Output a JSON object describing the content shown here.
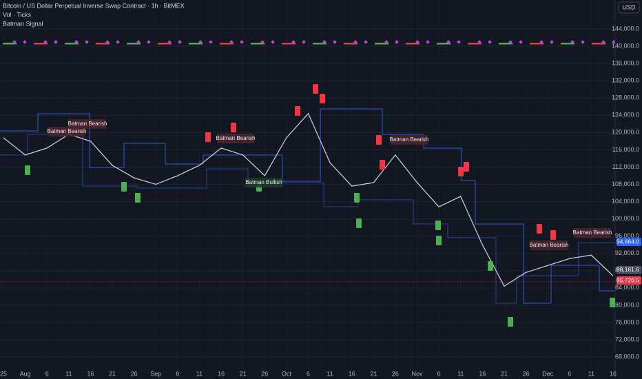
{
  "chart_data": {
    "type": "line",
    "title": "Bitcoin / US Dollar Perpetual Inverse Swap Contract · 1h · BitMEX",
    "indicators": [
      "Vol · Ticks",
      "Batman Signal"
    ],
    "currency": "USD",
    "categories": [
      "25",
      "Aug",
      "6",
      "11",
      "16",
      "21",
      "26",
      "Sep",
      "6",
      "11",
      "16",
      "21",
      "26",
      "Oct",
      "6",
      "11",
      "16",
      "21",
      "26",
      "Nov",
      "6",
      "11",
      "16",
      "21",
      "26",
      "Dec",
      "6",
      "11",
      "16"
    ],
    "series": [
      {
        "name": "BTC",
        "color": "#c7cad3",
        "values": [
          118800,
          114800,
          116400,
          119600,
          118000,
          112400,
          109500,
          108000,
          110000,
          112400,
          116400,
          114800,
          110000,
          118800,
          124400,
          113000,
          107600,
          108400,
          114800,
          108400,
          102800,
          105200,
          94000,
          84400,
          87600,
          89200,
          90800,
          91600,
          86800
        ]
      }
    ],
    "ylim": [
      65300,
      150700
    ],
    "yticks": [
      {
        "value": 68000,
        "label": "68,000.0"
      },
      {
        "value": 72000,
        "label": "72,000.0"
      },
      {
        "value": 76000,
        "label": "76,000.0"
      },
      {
        "value": 80000,
        "label": "80,000.0"
      },
      {
        "value": 84000,
        "label": "84,000.0"
      },
      {
        "value": 88000,
        "label": "88,000.0"
      },
      {
        "value": 92000,
        "label": "92,000.0"
      },
      {
        "value": 96000,
        "label": "96,000.0"
      },
      {
        "value": 100000,
        "label": "100,000.0"
      },
      {
        "value": 104000,
        "label": "104,000.0"
      },
      {
        "value": 108000,
        "label": "108,000.0"
      },
      {
        "value": 112000,
        "label": "112,000.0"
      },
      {
        "value": 116000,
        "label": "116,000.0"
      },
      {
        "value": 120000,
        "label": "120,000.0"
      },
      {
        "value": 124000,
        "label": "124,000.0"
      },
      {
        "value": 128000,
        "label": "128,000.0"
      },
      {
        "value": 132000,
        "label": "132,000.0"
      },
      {
        "value": 136000,
        "label": "136,000.0"
      },
      {
        "value": 140000,
        "label": "140,000.0"
      },
      {
        "value": 144000,
        "label": "144,000.0"
      }
    ],
    "grid": true,
    "price_tags": [
      {
        "value": 94664,
        "label": "94,664.0",
        "color": "#2962ff"
      },
      {
        "value": 88161.6,
        "label": "88,161.6",
        "color": "#4a4e5a"
      },
      {
        "value": 85726.5,
        "label": "85,726.5",
        "color": "#f23645"
      }
    ],
    "annotations": [
      "Batman Bearish",
      "Batman Bearish",
      "Batman Bearish",
      "Batman Bullish",
      "Batman Bearish",
      "Batman Bearish",
      "Batman Bearish"
    ]
  }
}
